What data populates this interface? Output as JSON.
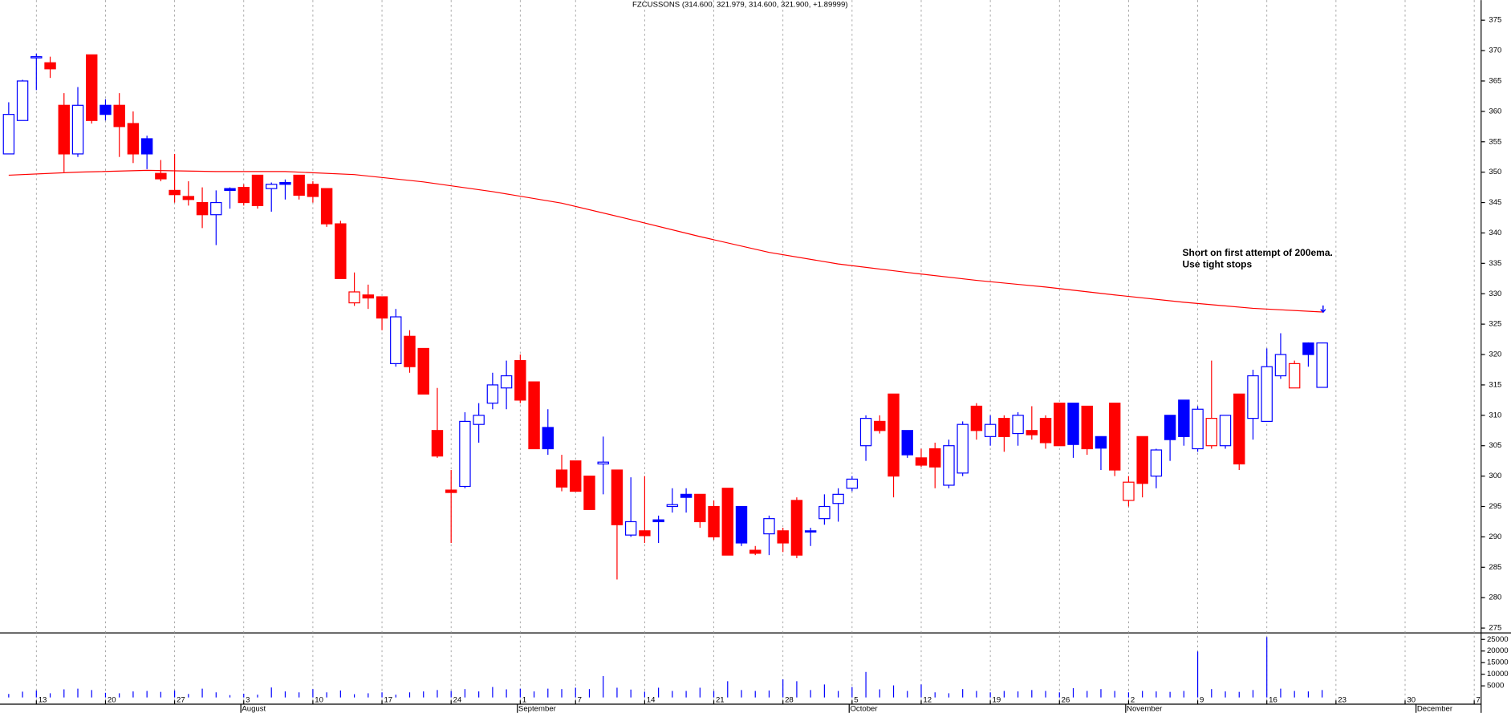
{
  "chart_data": {
    "type": "candlestick",
    "title": "FZCUSSONS (314.600, 321.979, 314.600, 321.900, +1.89999)",
    "annotation": [
      "Short on first attempt of 200ema.",
      "Use tight stops"
    ],
    "annotation_color": "#0000ff",
    "up_color": "#0000ff",
    "down_color": "#ff0000",
    "x": [
      0,
      1,
      2,
      3,
      4,
      5,
      6,
      7,
      8,
      9,
      10,
      11,
      12,
      13,
      14,
      15,
      16,
      17,
      18,
      19,
      20,
      21,
      22,
      23,
      24,
      25,
      26,
      27,
      28,
      29,
      30,
      31,
      32,
      33,
      34,
      35,
      36,
      37,
      38,
      39,
      40,
      41,
      42,
      43,
      44,
      45,
      46,
      47,
      48,
      49,
      50,
      51,
      52,
      53,
      54,
      55,
      56,
      57,
      58,
      59,
      60,
      61,
      62,
      63,
      64,
      65,
      66,
      67,
      68,
      69,
      70,
      71,
      72,
      73,
      74,
      75,
      76,
      77,
      78,
      79,
      80,
      81,
      82,
      83,
      84,
      85,
      86,
      87,
      88,
      89,
      90,
      91,
      92,
      93,
      94,
      95
    ],
    "open": [
      353,
      358.5,
      368.8,
      368,
      361,
      353,
      369.3,
      361,
      361,
      358,
      355.5,
      349.8,
      347,
      346,
      345,
      343,
      347.3,
      347.5,
      349.5,
      347.3,
      348.3,
      349.5,
      348,
      347.3,
      341.5,
      328.5,
      329.8,
      329.5,
      318.5,
      323,
      321,
      307.5,
      297.7,
      298.3,
      308.5,
      312,
      314.5,
      319,
      315.5,
      308,
      301,
      302.5,
      300,
      302,
      301,
      290.3,
      291,
      292.8,
      295,
      297,
      297,
      295,
      298,
      295,
      287.8,
      290.5,
      291,
      296,
      291,
      293,
      295.5,
      298,
      305,
      309,
      313.5,
      307.5,
      303,
      304.5,
      298.5,
      300.5,
      311.5,
      306.5,
      309.5,
      307,
      307.5,
      309.5,
      312,
      312,
      311.5,
      306.5,
      312,
      296,
      306.5,
      300,
      310,
      312.5,
      304.5,
      305,
      305,
      313.5,
      309.5,
      309,
      316.5,
      314.5,
      321.9,
      314.6
    ],
    "high": [
      361.5,
      365.2,
      369.5,
      369,
      363,
      364,
      369.3,
      362,
      363,
      360,
      356,
      352,
      353,
      348.5,
      347.5,
      347,
      347.5,
      348,
      349.5,
      348.3,
      348.8,
      349.5,
      348.5,
      347.3,
      342,
      333.5,
      331.5,
      329.5,
      327.5,
      324,
      321,
      314.5,
      301,
      310.5,
      312,
      317,
      319,
      320,
      315.5,
      311,
      303.5,
      302.5,
      300,
      306.5,
      301,
      299.8,
      300,
      293.5,
      298,
      298,
      297,
      296,
      298,
      295,
      288.5,
      293.5,
      291.5,
      296.5,
      291.5,
      297,
      298,
      300,
      310,
      310,
      313.5,
      307.5,
      304.5,
      305.5,
      306,
      309,
      312,
      310,
      310,
      310.5,
      311.5,
      310,
      312,
      312,
      311.5,
      306.5,
      312,
      300,
      306.5,
      304.5,
      310,
      312.5,
      311.5,
      319,
      310,
      313.5,
      317.5,
      321,
      323.5,
      319,
      322,
      321.979
    ],
    "low": [
      353,
      358.5,
      363.5,
      365.5,
      350,
      352.5,
      358,
      358.5,
      352.5,
      351.5,
      350.5,
      348.5,
      345,
      344.5,
      340.8,
      338,
      344,
      344.5,
      344,
      343.5,
      345.5,
      345.5,
      345,
      341,
      332.5,
      328,
      327.5,
      324,
      318,
      317,
      313.5,
      303,
      289,
      298,
      305.5,
      311,
      311,
      312,
      304.5,
      303.5,
      297.5,
      297.5,
      294.5,
      297,
      283,
      290,
      289,
      289,
      294,
      294,
      291.5,
      289.5,
      287,
      288.5,
      287,
      287,
      287.5,
      286.5,
      288.5,
      292,
      292.5,
      297.5,
      302.5,
      307,
      296.5,
      303,
      301.5,
      298,
      298,
      300,
      306,
      305,
      304,
      305,
      306,
      304.5,
      305,
      303,
      303.5,
      301,
      300,
      295,
      296.5,
      298,
      302.5,
      305,
      304,
      304.5,
      304.5,
      301,
      306,
      309,
      316,
      314.5,
      318,
      314.6
    ],
    "close": [
      359.5,
      365,
      369,
      367,
      353,
      361,
      358.5,
      359.5,
      357.5,
      353,
      353,
      348.9,
      346.3,
      345.5,
      343,
      345,
      347,
      345,
      344.5,
      348,
      348,
      346.2,
      346,
      341.5,
      332.5,
      330.3,
      329.3,
      326,
      326.2,
      318,
      313.5,
      303.3,
      297.3,
      309,
      310,
      315,
      316.5,
      312.5,
      304.5,
      304.5,
      298.2,
      297.5,
      294.5,
      302.3,
      292,
      292.5,
      290.2,
      292.5,
      295.3,
      296.5,
      292.5,
      290,
      287,
      289,
      287.3,
      293,
      289,
      287,
      290.8,
      295,
      297,
      299.5,
      309.5,
      307.5,
      300,
      303.5,
      301.8,
      301.5,
      305,
      308.5,
      307.5,
      308.5,
      306.5,
      310,
      306.8,
      305.5,
      305,
      305.2,
      304.5,
      304.6,
      301,
      299,
      298.8,
      304.3,
      306,
      306.5,
      311,
      309.5,
      310,
      302,
      316.5,
      318,
      320,
      318.5,
      320,
      321.9
    ],
    "ema": {
      "color": "#ff0000",
      "x": [
        0,
        5,
        10,
        15,
        20,
        25,
        30,
        35,
        40,
        45,
        50,
        55,
        60,
        65,
        70,
        75,
        80,
        85,
        90,
        95
      ],
      "values": [
        349.5,
        350.0,
        350.3,
        350.1,
        350.1,
        349.6,
        348.4,
        346.8,
        344.9,
        342.2,
        339.4,
        336.8,
        334.9,
        333.5,
        332.2,
        331.1,
        329.8,
        328.6,
        327.6,
        327.0
      ]
    },
    "volume": {
      "color": "#0000ff",
      "values": [
        1500,
        2500,
        3000,
        1800,
        3500,
        3800,
        3200,
        2000,
        1800,
        2600,
        2800,
        2400,
        3000,
        1500,
        3800,
        2200,
        1000,
        1600,
        1200,
        4300,
        2600,
        2200,
        3600,
        2200,
        3000,
        1400,
        1800,
        2200,
        1200,
        2200,
        2600,
        3200,
        2800,
        3600,
        2600,
        4500,
        3500,
        3800,
        2600,
        3800,
        3600,
        4200,
        3600,
        9200,
        4200,
        3400,
        2500,
        4200,
        2800,
        2800,
        4200,
        2800,
        7000,
        3200,
        2800,
        3000,
        7800,
        7000,
        3200,
        5600,
        2800,
        4500,
        11000,
        3500,
        5200,
        2800,
        5600,
        2200,
        1800,
        3600,
        2800,
        2200,
        2800,
        2600,
        3200,
        2800,
        2200,
        4000,
        2800,
        3600,
        2800,
        2200,
        2800,
        2600,
        2400,
        2800,
        19800,
        3600,
        2600,
        2400,
        3200,
        26000,
        3800,
        2800,
        2600,
        3200
      ],
      "ylim": [
        0,
        27800
      ],
      "yticks": [
        5000,
        10000,
        15000,
        20000,
        25000
      ]
    },
    "xlim": [
      -0.63,
      106.5
    ],
    "ylim": [
      274.2,
      378.3
    ],
    "yticks": [
      275,
      280,
      285,
      290,
      295,
      300,
      305,
      310,
      315,
      320,
      325,
      330,
      335,
      340,
      345,
      350,
      355,
      360,
      365,
      370,
      375
    ],
    "xticks": [
      {
        "value": 2,
        "label": "13"
      },
      {
        "value": 7,
        "label": "20"
      },
      {
        "value": 12,
        "label": "27"
      },
      {
        "value": 17,
        "label": "3"
      },
      {
        "value": 22,
        "label": "10"
      },
      {
        "value": 27,
        "label": "17"
      },
      {
        "value": 32,
        "label": "24"
      },
      {
        "value": 37,
        "label": "1"
      },
      {
        "value": 41,
        "label": "7"
      },
      {
        "value": 46,
        "label": "14"
      },
      {
        "value": 51,
        "label": "21"
      },
      {
        "value": 56,
        "label": "28"
      },
      {
        "value": 61,
        "label": "5"
      },
      {
        "value": 66,
        "label": "12"
      },
      {
        "value": 71,
        "label": "19"
      },
      {
        "value": 76,
        "label": "26"
      },
      {
        "value": 81,
        "label": "2"
      },
      {
        "value": 86,
        "label": "9"
      },
      {
        "value": 91,
        "label": "16"
      },
      {
        "value": 96,
        "label": "23"
      },
      {
        "value": 101,
        "label": "30"
      },
      {
        "value": 106,
        "label": "7"
      }
    ],
    "month_ticks": [
      {
        "value": 17,
        "label": "August"
      },
      {
        "value": 37,
        "label": "September"
      },
      {
        "value": 61,
        "label": "October"
      },
      {
        "value": 81,
        "label": "November"
      },
      {
        "value": 102,
        "label": "December"
      }
    ],
    "grid": true
  }
}
